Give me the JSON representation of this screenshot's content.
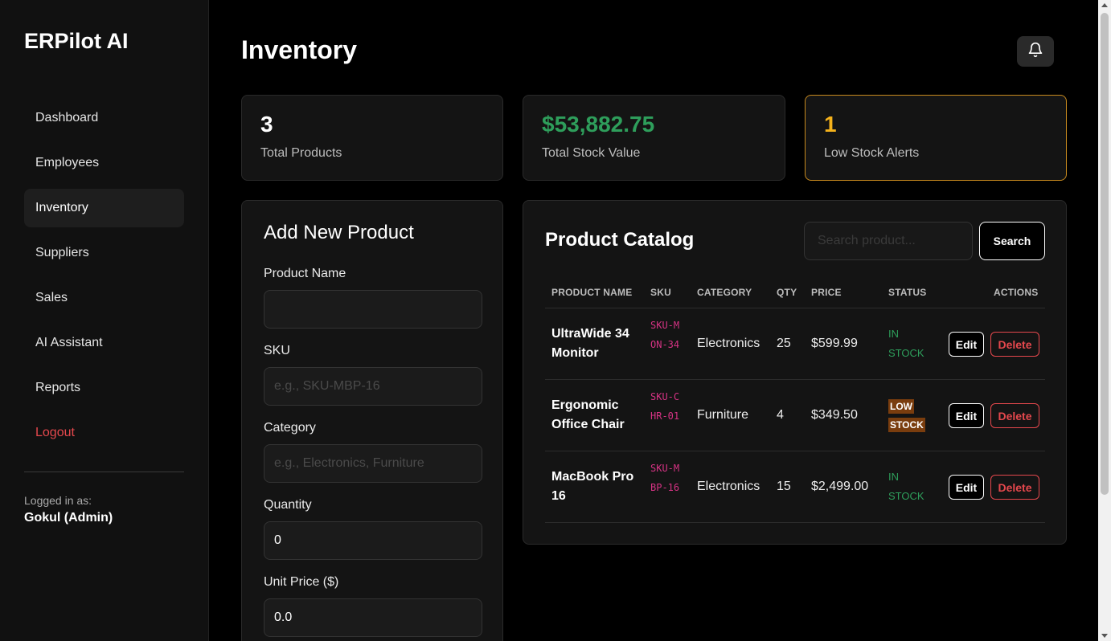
{
  "app": {
    "brand": "ERPilot AI"
  },
  "sidebar": {
    "items": [
      {
        "label": "Dashboard"
      },
      {
        "label": "Employees"
      },
      {
        "label": "Inventory",
        "active": true
      },
      {
        "label": "Suppliers"
      },
      {
        "label": "Sales"
      },
      {
        "label": "AI Assistant"
      },
      {
        "label": "Reports"
      },
      {
        "label": "Logout"
      }
    ],
    "logged_in_label": "Logged in as:",
    "logged_in_user": "Gokul (Admin)"
  },
  "header": {
    "title": "Inventory",
    "bell_icon": "bell-icon"
  },
  "stats": [
    {
      "value": "3",
      "label": "Total Products",
      "color": "#ffffff"
    },
    {
      "value": "$53,882.75",
      "label": "Total Stock Value",
      "color": "#2e9e5b"
    },
    {
      "value": "1",
      "label": "Low Stock Alerts",
      "color": "#f5b21b"
    }
  ],
  "form": {
    "title": "Add New Product",
    "fields": [
      {
        "label": "Product Name",
        "value": "",
        "placeholder": ""
      },
      {
        "label": "SKU",
        "value": "",
        "placeholder": "e.g., SKU-MBP-16"
      },
      {
        "label": "Category",
        "value": "",
        "placeholder": "e.g., Electronics, Furniture"
      },
      {
        "label": "Quantity",
        "value": "0",
        "placeholder": ""
      },
      {
        "label": "Unit Price ($)",
        "value": "0.0",
        "placeholder": ""
      }
    ]
  },
  "catalog": {
    "title": "Product Catalog",
    "search_placeholder": "Search product...",
    "search_button": "Search",
    "columns": [
      "PRODUCT NAME",
      "SKU",
      "CATEGORY",
      "QTY",
      "PRICE",
      "STATUS",
      "ACTIONS"
    ],
    "rows": [
      {
        "name": "UltraWide 34 Monitor",
        "sku": "SKU-MON-34",
        "category": "Electronics",
        "qty": "25",
        "price": "$599.99",
        "status": "IN STOCK",
        "status_type": "in"
      },
      {
        "name": "Ergonomic Office Chair",
        "sku": "SKU-CHR-01",
        "category": "Furniture",
        "qty": "4",
        "price": "$349.50",
        "status": "LOW STOCK",
        "status_type": "low"
      },
      {
        "name": "MacBook Pro 16",
        "sku": "SKU-MBP-16",
        "category": "Electronics",
        "qty": "15",
        "price": "$2,499.00",
        "status": "IN STOCK",
        "status_type": "in"
      }
    ],
    "edit_label": "Edit",
    "delete_label": "Delete"
  },
  "colors": {
    "accent_red": "#e5484d",
    "accent_green": "#2e9e5b",
    "accent_orange": "#c88a1e",
    "sku_pink": "#d63384"
  }
}
